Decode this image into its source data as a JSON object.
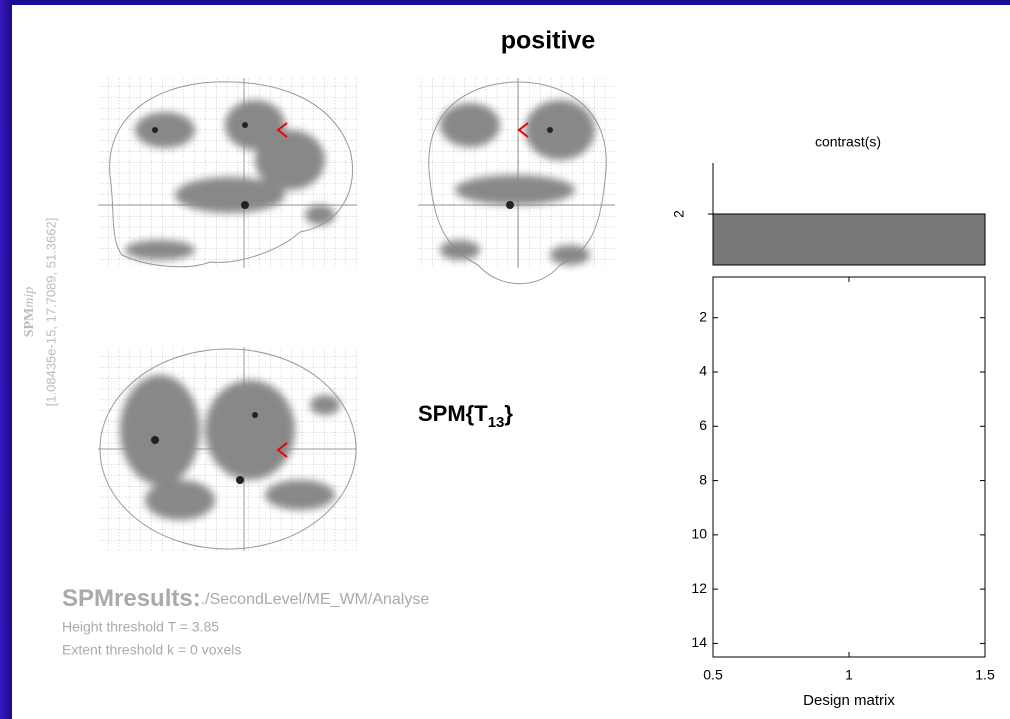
{
  "title": "positive",
  "mip": {
    "label": "SPM",
    "label_sub": "mip",
    "coords": "[1.08435e-15, 17.7089, 51.3662]"
  },
  "stat": {
    "label": "SPM{T",
    "sub": "13",
    "close": "}"
  },
  "results": {
    "heading": "SPMresults:",
    "path": "./SecondLevel/ME_WM/Analyse",
    "lines": [
      "Height threshold T = 3.85",
      "Extent threshold k = 0 voxels"
    ]
  },
  "contrast": {
    "title": "contrast(s)",
    "tick": "2"
  },
  "design_matrix": {
    "xlabel": "Design matrix",
    "xlim": [
      0.5,
      1.5
    ],
    "ylim": [
      0.5,
      14.5
    ],
    "xticks": [
      0.5,
      1,
      1.5
    ],
    "yticks": [
      2,
      4,
      6,
      8,
      10,
      12,
      14
    ]
  }
}
